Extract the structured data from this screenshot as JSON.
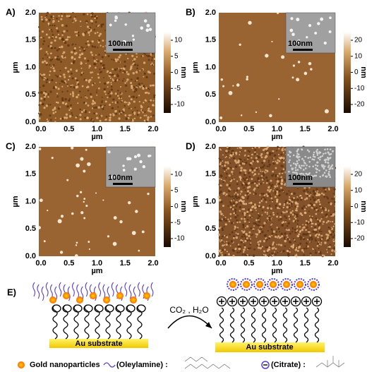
{
  "panels": [
    {
      "label": "A)",
      "x_ticks": [
        "0.0",
        "0.5",
        "1.0",
        "1.5",
        "2.0"
      ],
      "y_ticks": [
        "2.0",
        "1.5",
        "1.0",
        "0.5",
        "0.0"
      ],
      "x_label": "µm",
      "y_label": "µm",
      "scale_bar": "100nm",
      "colorbar_ticks": [
        "10",
        "5",
        "0",
        "-5",
        "-10"
      ],
      "colorbar_label": "nm"
    },
    {
      "label": "B)",
      "x_ticks": [
        "0.0",
        "0.5",
        "1.0",
        "1.5",
        "2.0"
      ],
      "y_ticks": [
        "2.0",
        "1.5",
        "1.0",
        "0.5",
        "0.0"
      ],
      "x_label": "µm",
      "y_label": "µm",
      "scale_bar": "100nm",
      "colorbar_ticks": [
        "20",
        "10",
        "0",
        "-10",
        "-20"
      ],
      "colorbar_label": "nm"
    },
    {
      "label": "C)",
      "x_ticks": [
        "0.0",
        "0.5",
        "1.0",
        "1.5",
        "2.0"
      ],
      "y_ticks": [
        "2.0",
        "1.5",
        "1.0",
        "0.5",
        "0.0"
      ],
      "x_label": "µm",
      "y_label": "µm",
      "scale_bar": "100nm",
      "colorbar_ticks": [
        "10",
        "5",
        "0",
        "-5",
        "-10"
      ],
      "colorbar_label": "nm"
    },
    {
      "label": "D)",
      "x_ticks": [
        "0.0",
        "0.5",
        "1.0",
        "1.5",
        "2.0"
      ],
      "y_ticks": [
        "2.0",
        "1.5",
        "1.0",
        "0.5",
        "0.0"
      ],
      "x_label": "µm",
      "y_label": "µm",
      "scale_bar": "100nm",
      "colorbar_ticks": [
        "20",
        "10",
        "0",
        "-10",
        "-20"
      ],
      "colorbar_label": "nm"
    }
  ],
  "scheme": {
    "label": "E)",
    "reaction": "CO₂ , H₂O",
    "substrate_left": "Au substrate",
    "substrate_right": "Au substrate",
    "legend": [
      "Gold nanoparticles",
      "(Oleylamine) :",
      "(Citrate) :"
    ]
  }
}
